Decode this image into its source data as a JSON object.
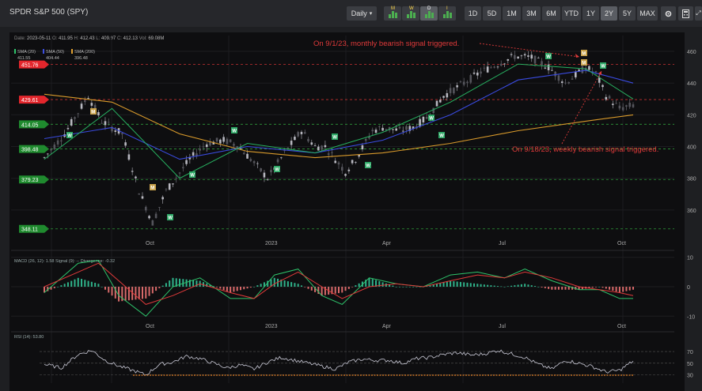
{
  "app": {
    "title": "SPDR S&P 500 (SPY)"
  },
  "toolbar": {
    "interval": "Daily",
    "interval_caret": "▾",
    "freq_buttons": [
      "M",
      "W",
      "D",
      "I"
    ],
    "ranges": [
      "1D",
      "5D",
      "1M",
      "3M",
      "6M",
      "YTD",
      "1Y",
      "2Y",
      "5Y",
      "MAX"
    ],
    "active_range": "2Y",
    "settings_icon": "settings-icon",
    "calculator_icon": "calculator-icon",
    "fullscreen_icon": "fullscreen-icon"
  },
  "ohlc": {
    "date_label": "Date:",
    "date": "2023-05-11",
    "o_label": "O:",
    "o": "411.95",
    "h_label": "H:",
    "h": "412.43",
    "l_label": "L:",
    "l": "409.97",
    "c_label": "C:",
    "c": "412.13",
    "vol_label": "Vol:",
    "vol": "69.08M"
  },
  "chart_data": [
    {
      "type": "candlestick",
      "ylim": [
        343,
        465
      ],
      "yticks": [
        360,
        380,
        400,
        420,
        440,
        460
      ],
      "xticks": [
        "Oct",
        "2023",
        "Apr",
        "Jul",
        "Oct"
      ],
      "legend": [
        {
          "name": "SMA (20)",
          "value": "411.55",
          "color": "#2ec46b"
        },
        {
          "name": "SMA (50)",
          "value": "404.44",
          "color": "#3d4fe0"
        },
        {
          "name": "SMA (200)",
          "value": "396.48",
          "color": "#e0a030"
        }
      ],
      "levels": [
        {
          "value": 451.76,
          "label": "451.76",
          "color": "#e3262c",
          "line": "#c83232"
        },
        {
          "value": 429.61,
          "label": "429.61",
          "color": "#e3262c",
          "line": "#c83232"
        },
        {
          "value": 414.05,
          "label": "414.05",
          "color": "#1f8a2e",
          "line": "#2e9a3a"
        },
        {
          "value": 398.48,
          "label": "398.48",
          "color": "#1f8a2e",
          "line": "#2e9a3a"
        },
        {
          "value": 379.23,
          "label": "379.23",
          "color": "#1f8a2e",
          "line": "#2e9a3a"
        },
        {
          "value": 348.11,
          "label": "348.11",
          "color": "#1f8a2e",
          "line": "#2e9a3a"
        }
      ],
      "annotations": [
        {
          "text": "On 9/1/23, monthly bearish signal triggered.",
          "color": "#e03a3a"
        },
        {
          "text": "On 9/18/23, weekly bearish signal triggered.",
          "color": "#e03a3a"
        }
      ],
      "path_points": [
        [
          0,
          393
        ],
        [
          6,
          408
        ],
        [
          13,
          432
        ],
        [
          17,
          416
        ],
        [
          23,
          408
        ],
        [
          28,
          372
        ],
        [
          32,
          352
        ],
        [
          36,
          372
        ],
        [
          43,
          392
        ],
        [
          48,
          402
        ],
        [
          53,
          404
        ],
        [
          57,
          401
        ],
        [
          61,
          392
        ],
        [
          66,
          380
        ],
        [
          71,
          396
        ],
        [
          76,
          410
        ],
        [
          80,
          400
        ],
        [
          83,
          400
        ],
        [
          89,
          384
        ],
        [
          92,
          392
        ],
        [
          97,
          410
        ],
        [
          100,
          412
        ],
        [
          105,
          410
        ],
        [
          109,
          412
        ],
        [
          113,
          418
        ],
        [
          118,
          432
        ],
        [
          124,
          440
        ],
        [
          129,
          447
        ],
        [
          134,
          452
        ],
        [
          139,
          457
        ],
        [
          144,
          456
        ],
        [
          149,
          450
        ],
        [
          154,
          440
        ],
        [
          157,
          445
        ],
        [
          160,
          450
        ],
        [
          163,
          446
        ],
        [
          166,
          432
        ],
        [
          170,
          424
        ],
        [
          174,
          426
        ]
      ],
      "sma20": [
        [
          0,
          392
        ],
        [
          20,
          424
        ],
        [
          40,
          380
        ],
        [
          60,
          402
        ],
        [
          80,
          396
        ],
        [
          100,
          409
        ],
        [
          120,
          428
        ],
        [
          140,
          452
        ],
        [
          160,
          449
        ],
        [
          174,
          430
        ]
      ],
      "sma50": [
        [
          0,
          405
        ],
        [
          20,
          412
        ],
        [
          40,
          392
        ],
        [
          60,
          400
        ],
        [
          80,
          396
        ],
        [
          100,
          404
        ],
        [
          120,
          420
        ],
        [
          140,
          442
        ],
        [
          160,
          448
        ],
        [
          174,
          440
        ]
      ],
      "sma200": [
        [
          0,
          433
        ],
        [
          20,
          428
        ],
        [
          40,
          408
        ],
        [
          60,
          397
        ],
        [
          80,
          393
        ],
        [
          100,
          396
        ],
        [
          120,
          402
        ],
        [
          140,
          410
        ],
        [
          160,
          416
        ],
        [
          174,
          420
        ]
      ]
    },
    {
      "type": "bar",
      "name": "MACD",
      "legend_text": "MACD (26, 12): 1.58 Signal (9): -- Divergence: -0.32",
      "ylim": [
        -11,
        11
      ],
      "yticks": [
        10,
        0,
        -10
      ],
      "xticks": [
        "Oct",
        "2023",
        "Apr",
        "Jul",
        "Oct"
      ],
      "macd": [
        [
          0,
          -2
        ],
        [
          10,
          8
        ],
        [
          16,
          9
        ],
        [
          22,
          -3
        ],
        [
          30,
          -10
        ],
        [
          38,
          0
        ],
        [
          46,
          3
        ],
        [
          55,
          -4
        ],
        [
          62,
          -4
        ],
        [
          68,
          4
        ],
        [
          75,
          6
        ],
        [
          82,
          -3
        ],
        [
          88,
          -6
        ],
        [
          96,
          3
        ],
        [
          104,
          1
        ],
        [
          112,
          0
        ],
        [
          120,
          4
        ],
        [
          128,
          5
        ],
        [
          136,
          3
        ],
        [
          142,
          6
        ],
        [
          150,
          2
        ],
        [
          158,
          -1
        ],
        [
          164,
          -1
        ],
        [
          170,
          -4
        ],
        [
          174,
          -4
        ]
      ],
      "signal": [
        [
          0,
          0
        ],
        [
          10,
          5
        ],
        [
          16,
          8
        ],
        [
          22,
          2
        ],
        [
          30,
          -6
        ],
        [
          38,
          -3
        ],
        [
          46,
          1
        ],
        [
          55,
          -2
        ],
        [
          62,
          -4
        ],
        [
          68,
          1
        ],
        [
          75,
          5
        ],
        [
          82,
          0
        ],
        [
          88,
          -4
        ],
        [
          96,
          0
        ],
        [
          104,
          1
        ],
        [
          112,
          0
        ],
        [
          120,
          2
        ],
        [
          128,
          4
        ],
        [
          136,
          3
        ],
        [
          142,
          5
        ],
        [
          150,
          3
        ],
        [
          158,
          0
        ],
        [
          164,
          -1
        ],
        [
          170,
          -2
        ],
        [
          174,
          -3
        ]
      ]
    },
    {
      "type": "line",
      "name": "RSI",
      "legend_text": "RSI (14): 53.80",
      "ylim": [
        20,
        85
      ],
      "yticks": [
        70,
        50,
        30
      ],
      "xticks": [
        "Oct",
        "2023",
        "Apr",
        "Jul",
        "Oct"
      ],
      "rsi": [
        [
          0,
          48
        ],
        [
          5,
          42
        ],
        [
          10,
          65
        ],
        [
          14,
          72
        ],
        [
          18,
          55
        ],
        [
          22,
          45
        ],
        [
          26,
          38
        ],
        [
          30,
          30
        ],
        [
          34,
          48
        ],
        [
          38,
          52
        ],
        [
          42,
          62
        ],
        [
          46,
          58
        ],
        [
          50,
          50
        ],
        [
          54,
          42
        ],
        [
          58,
          47
        ],
        [
          62,
          40
        ],
        [
          66,
          52
        ],
        [
          70,
          60
        ],
        [
          74,
          55
        ],
        [
          78,
          50
        ],
        [
          82,
          45
        ],
        [
          86,
          40
        ],
        [
          90,
          52
        ],
        [
          94,
          57
        ],
        [
          98,
          55
        ],
        [
          102,
          55
        ],
        [
          106,
          50
        ],
        [
          110,
          58
        ],
        [
          114,
          60
        ],
        [
          118,
          65
        ],
        [
          122,
          68
        ],
        [
          126,
          64
        ],
        [
          130,
          66
        ],
        [
          134,
          72
        ],
        [
          138,
          66
        ],
        [
          142,
          60
        ],
        [
          146,
          48
        ],
        [
          150,
          40
        ],
        [
          154,
          55
        ],
        [
          158,
          50
        ],
        [
          162,
          44
        ],
        [
          166,
          35
        ],
        [
          170,
          38
        ],
        [
          174,
          53.8
        ]
      ]
    }
  ]
}
